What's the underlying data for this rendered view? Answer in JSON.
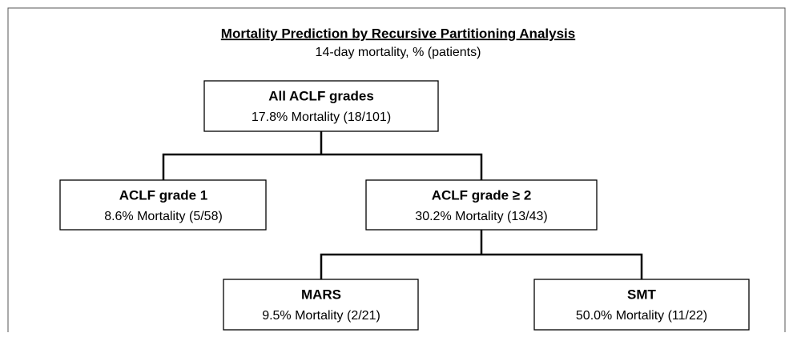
{
  "header": {
    "title": "Mortality Prediction by Recursive Partitioning Analysis",
    "subtitle": "14-day mortality, % (patients)"
  },
  "nodes": [
    {
      "label": "All ACLF grades",
      "detail": "17.8% Mortality (18/101)"
    },
    {
      "label": "ACLF grade 1",
      "detail": "8.6% Mortality (5/58)"
    },
    {
      "label": "ACLF grade ≥ 2",
      "detail": "30.2% Mortality (13/43)"
    },
    {
      "label": "MARS",
      "detail": "9.5% Mortality (2/21)"
    },
    {
      "label": "SMT",
      "detail": "50.0% Mortality (11/22)"
    }
  ]
}
